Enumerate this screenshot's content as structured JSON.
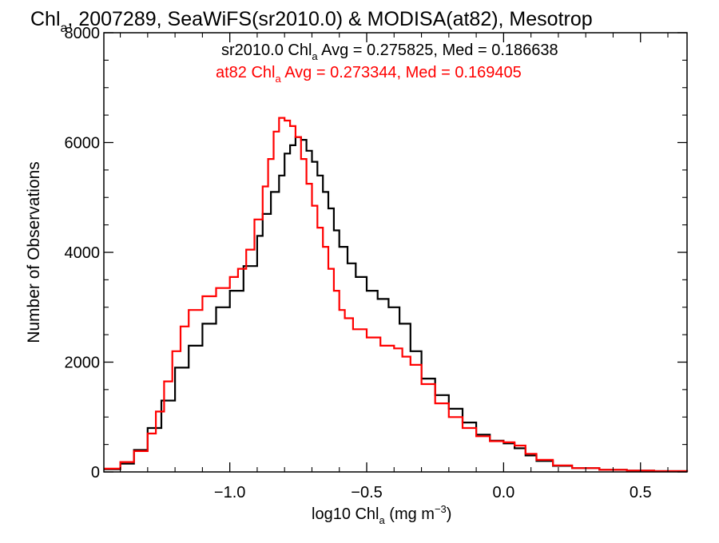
{
  "title": {
    "pre": "Chl",
    "sub": "a",
    "post": ", 2007289, SeaWiFS(sr2010.0) & MODISA(at82), Mesotrop"
  },
  "legend": {
    "line1": {
      "pre": "sr2010.0 Chl",
      "sub": "a",
      "post": " Avg = 0.275825, Med = 0.186638",
      "color": "#000000"
    },
    "line2": {
      "pre": "at82 Chl",
      "sub": "a",
      "post": " Avg = 0.273344, Med = 0.169405",
      "color": "#ff0000"
    }
  },
  "xlabel": {
    "pre": "log10 Chl",
    "sub": "a",
    "mid": " (mg m",
    "sup": "−3",
    "post": ")"
  },
  "ylabel": "Number of Observations",
  "colors": {
    "series_sr2010": "#000000",
    "series_at82": "#ff0000",
    "axis": "#000000",
    "background": "#ffffff"
  },
  "chart_data": {
    "type": "line",
    "step": true,
    "xlim": [
      -1.46,
      0.67
    ],
    "ylim": [
      0,
      8000
    ],
    "x_ticks": [
      -1.0,
      -0.5,
      0.0,
      0.5
    ],
    "x_tick_labels": [
      "−1.0",
      "−0.5",
      "0.0",
      "0.5"
    ],
    "y_ticks": [
      0,
      2000,
      4000,
      6000,
      8000
    ],
    "y_tick_labels": [
      "0",
      "2000",
      "4000",
      "6000",
      "8000"
    ],
    "grid": false,
    "series": [
      {
        "name": "sr2010.0",
        "color": "#000000",
        "points": [
          [
            -1.46,
            50
          ],
          [
            -1.4,
            150
          ],
          [
            -1.35,
            400
          ],
          [
            -1.3,
            800
          ],
          [
            -1.25,
            1300
          ],
          [
            -1.2,
            1900
          ],
          [
            -1.15,
            2300
          ],
          [
            -1.1,
            2700
          ],
          [
            -1.05,
            3000
          ],
          [
            -1.0,
            3300
          ],
          [
            -0.95,
            3750
          ],
          [
            -0.9,
            4300
          ],
          [
            -0.88,
            4700
          ],
          [
            -0.85,
            5100
          ],
          [
            -0.82,
            5400
          ],
          [
            -0.8,
            5800
          ],
          [
            -0.78,
            5950
          ],
          [
            -0.76,
            6100
          ],
          [
            -0.74,
            6050
          ],
          [
            -0.72,
            5850
          ],
          [
            -0.7,
            5650
          ],
          [
            -0.68,
            5400
          ],
          [
            -0.66,
            5100
          ],
          [
            -0.64,
            4800
          ],
          [
            -0.62,
            4400
          ],
          [
            -0.6,
            4100
          ],
          [
            -0.57,
            3800
          ],
          [
            -0.54,
            3550
          ],
          [
            -0.5,
            3300
          ],
          [
            -0.46,
            3150
          ],
          [
            -0.42,
            3000
          ],
          [
            -0.38,
            2700
          ],
          [
            -0.34,
            2200
          ],
          [
            -0.3,
            1700
          ],
          [
            -0.25,
            1400
          ],
          [
            -0.2,
            1150
          ],
          [
            -0.15,
            900
          ],
          [
            -0.1,
            680
          ],
          [
            -0.05,
            570
          ],
          [
            0.0,
            520
          ],
          [
            0.04,
            430
          ],
          [
            0.08,
            300
          ],
          [
            0.12,
            200
          ],
          [
            0.18,
            110
          ],
          [
            0.25,
            70
          ],
          [
            0.35,
            40
          ],
          [
            0.45,
            25
          ],
          [
            0.55,
            15
          ],
          [
            0.67,
            5
          ]
        ]
      },
      {
        "name": "at82",
        "color": "#ff0000",
        "points": [
          [
            -1.46,
            60
          ],
          [
            -1.4,
            180
          ],
          [
            -1.35,
            380
          ],
          [
            -1.3,
            700
          ],
          [
            -1.27,
            1100
          ],
          [
            -1.24,
            1650
          ],
          [
            -1.21,
            2200
          ],
          [
            -1.18,
            2650
          ],
          [
            -1.15,
            2950
          ],
          [
            -1.1,
            3200
          ],
          [
            -1.05,
            3350
          ],
          [
            -1.0,
            3550
          ],
          [
            -0.97,
            3700
          ],
          [
            -0.94,
            4050
          ],
          [
            -0.91,
            4600
          ],
          [
            -0.88,
            5200
          ],
          [
            -0.86,
            5700
          ],
          [
            -0.84,
            6200
          ],
          [
            -0.82,
            6450
          ],
          [
            -0.8,
            6400
          ],
          [
            -0.78,
            6300
          ],
          [
            -0.76,
            6100
          ],
          [
            -0.74,
            5700
          ],
          [
            -0.72,
            5250
          ],
          [
            -0.7,
            4850
          ],
          [
            -0.68,
            4450
          ],
          [
            -0.66,
            4100
          ],
          [
            -0.64,
            3700
          ],
          [
            -0.62,
            3300
          ],
          [
            -0.6,
            2950
          ],
          [
            -0.58,
            2800
          ],
          [
            -0.55,
            2600
          ],
          [
            -0.5,
            2450
          ],
          [
            -0.45,
            2300
          ],
          [
            -0.4,
            2250
          ],
          [
            -0.37,
            2100
          ],
          [
            -0.34,
            1950
          ],
          [
            -0.3,
            1600
          ],
          [
            -0.25,
            1250
          ],
          [
            -0.2,
            1000
          ],
          [
            -0.15,
            800
          ],
          [
            -0.1,
            650
          ],
          [
            -0.05,
            560
          ],
          [
            0.0,
            540
          ],
          [
            0.04,
            480
          ],
          [
            0.08,
            330
          ],
          [
            0.12,
            220
          ],
          [
            0.18,
            120
          ],
          [
            0.25,
            70
          ],
          [
            0.35,
            40
          ],
          [
            0.45,
            25
          ],
          [
            0.55,
            15
          ],
          [
            0.67,
            5
          ]
        ]
      }
    ]
  }
}
